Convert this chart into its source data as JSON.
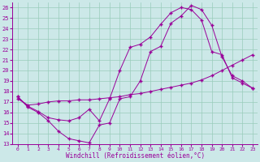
{
  "bg_color": "#cce8e8",
  "line_color": "#990099",
  "grid_color": "#99ccbb",
  "xlim": [
    -0.5,
    23.5
  ],
  "ylim": [
    13,
    26.5
  ],
  "xticks": [
    0,
    1,
    2,
    3,
    4,
    5,
    6,
    7,
    8,
    9,
    10,
    11,
    12,
    13,
    14,
    15,
    16,
    17,
    18,
    19,
    20,
    21,
    22,
    23
  ],
  "yticks": [
    13,
    14,
    15,
    16,
    17,
    18,
    19,
    20,
    21,
    22,
    23,
    24,
    25,
    26
  ],
  "xlabel": "Windchill (Refroidissement éolien,°C)",
  "line1_x": [
    0,
    1,
    2,
    3,
    4,
    5,
    6,
    7,
    8,
    9,
    10,
    11,
    12,
    13,
    14,
    15,
    16,
    17,
    18,
    19,
    20,
    21,
    22,
    23
  ],
  "line1_y": [
    17.5,
    16.5,
    16.0,
    15.2,
    14.2,
    13.5,
    13.3,
    13.1,
    14.8,
    15.0,
    17.3,
    17.5,
    19.0,
    21.8,
    22.3,
    24.5,
    25.2,
    26.2,
    25.8,
    24.3,
    21.3,
    19.5,
    19.0,
    18.3
  ],
  "line2_x": [
    0,
    1,
    2,
    3,
    4,
    5,
    6,
    7,
    8,
    9,
    10,
    11,
    12,
    13,
    14,
    15,
    16,
    17,
    18,
    19,
    20,
    21,
    22,
    23
  ],
  "line2_y": [
    17.3,
    16.7,
    16.8,
    17.0,
    17.1,
    17.1,
    17.2,
    17.2,
    17.3,
    17.4,
    17.5,
    17.7,
    17.8,
    18.0,
    18.2,
    18.4,
    18.6,
    18.8,
    19.1,
    19.5,
    20.0,
    20.5,
    21.0,
    21.5
  ],
  "line3_x": [
    0,
    1,
    2,
    3,
    4,
    5,
    6,
    7,
    8,
    9,
    10,
    11,
    12,
    13,
    14,
    15,
    16,
    17,
    18,
    19,
    20,
    21,
    22,
    23
  ],
  "line3_y": [
    17.5,
    16.6,
    16.1,
    15.5,
    15.3,
    15.2,
    15.5,
    16.3,
    15.2,
    17.3,
    20.0,
    22.2,
    22.5,
    23.2,
    24.4,
    25.5,
    26.0,
    25.8,
    24.8,
    21.8,
    21.5,
    19.3,
    18.8,
    18.3
  ]
}
